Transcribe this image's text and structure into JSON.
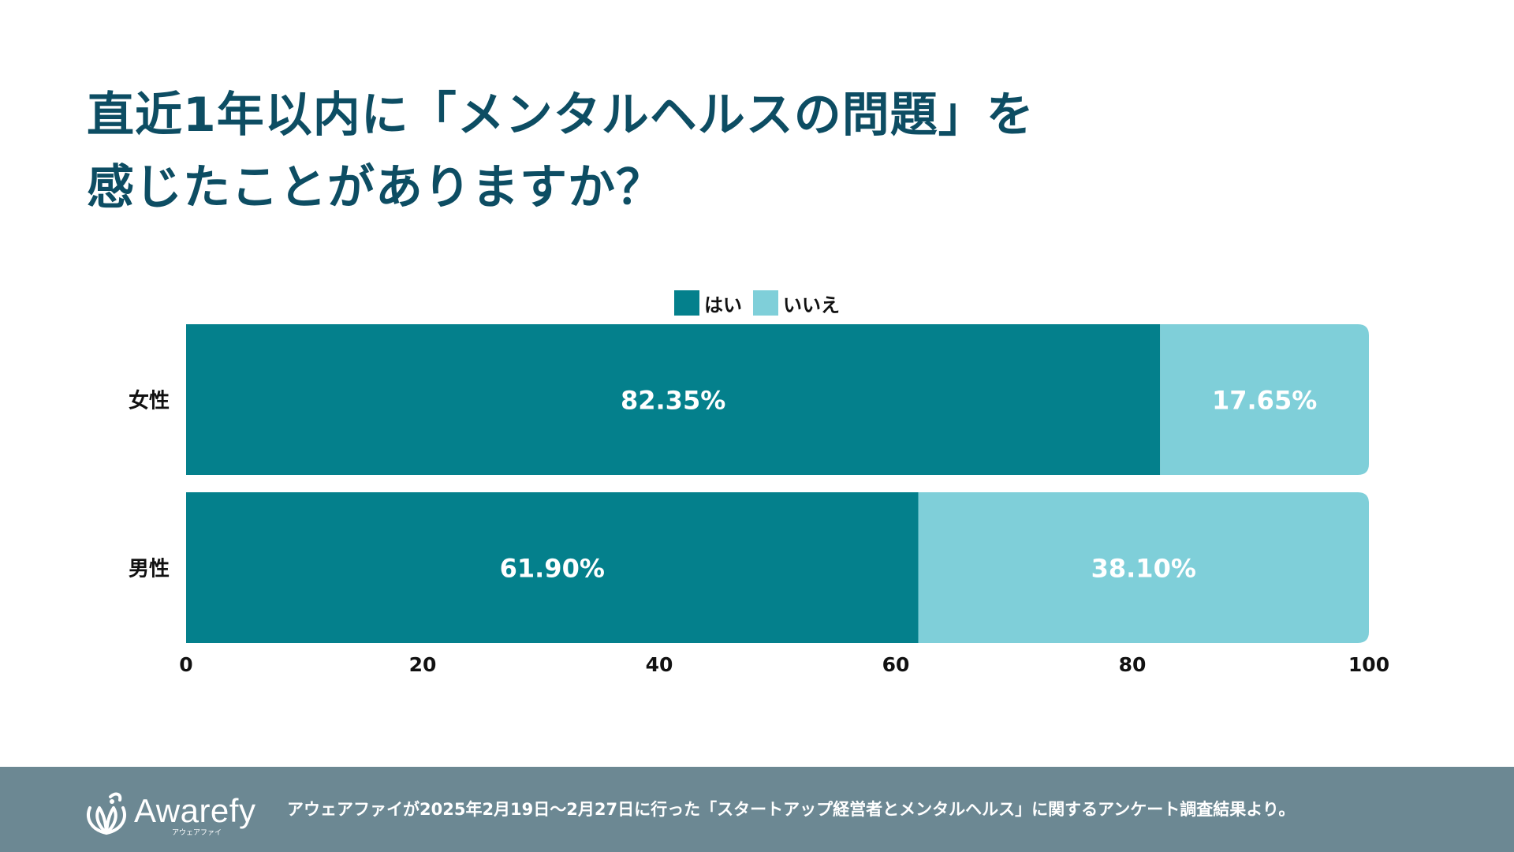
{
  "title": {
    "line1": "直近1年以内に「メンタルヘルスの問題」を",
    "line2": "感じたことがありますか？"
  },
  "chart_data": {
    "type": "bar",
    "orientation": "horizontal",
    "stacked": true,
    "categories": [
      "女性",
      "男性"
    ],
    "series": [
      {
        "name": "はい",
        "values": [
          82.35,
          61.9
        ],
        "labels": [
          "82.35%",
          "61.90%"
        ],
        "color": "#04808c"
      },
      {
        "name": "いいえ",
        "values": [
          17.65,
          38.1
        ],
        "labels": [
          "17.65%",
          "38.10%"
        ],
        "color": "#7fcfd9"
      }
    ],
    "xlim": [
      0,
      100
    ],
    "xticks": [
      0,
      20,
      40,
      60,
      80,
      100
    ],
    "legend": "top-center",
    "grid": false
  },
  "footer": {
    "logo_text": "Awarefy",
    "logo_subtext": "アウェアファイ",
    "source": "アウェアファイが2025年2月19日〜2月27日に行った「スタートアップ経営者とメンタルヘルス」に関するアンケート調査結果より。",
    "background": "#6c8893"
  }
}
